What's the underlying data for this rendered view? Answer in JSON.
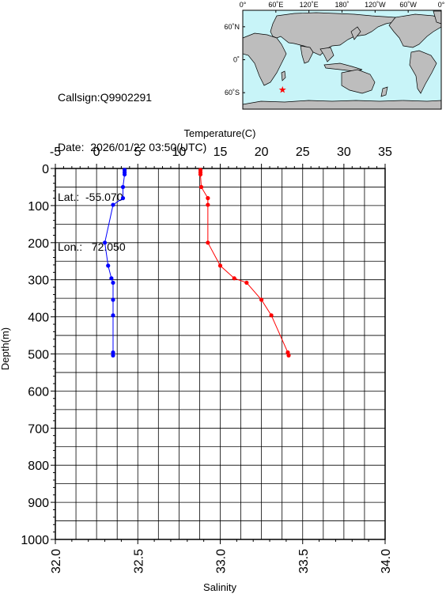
{
  "station": {
    "callsign": "Callsign:Q9902291",
    "date": "Date:  2026/01/22 03:50(UTC)",
    "lat": "Lat.:  -55.070",
    "lon": "Lon.:   72.050"
  },
  "map": {
    "lon_labels": [
      "0°",
      "60˚E",
      "120˚E",
      "180˚",
      "120˚W",
      "60˚W",
      "0°"
    ],
    "lat_labels": [
      "60˚N",
      "0˚",
      "60˚S"
    ],
    "marker": {
      "lon": 72.05,
      "lat": -55.07
    },
    "colors": {
      "ocean": "#c8f4f8",
      "land": "#bdbdbd",
      "marker": "#ff0000"
    }
  },
  "chart_data": {
    "type": "line",
    "temperature_axis_label": "Temperature(C)",
    "salinity_axis_label": "Salinity",
    "depth_axis_label": "Depth(m)",
    "temperature_ticks": [
      "-5",
      "0",
      "5",
      "10",
      "15",
      "20",
      "25",
      "30",
      "35"
    ],
    "salinity_ticks": [
      "32.0",
      "32.5",
      "33.0",
      "33.5",
      "34.0"
    ],
    "depth_ticks": [
      "0",
      "100",
      "200",
      "300",
      "400",
      "500",
      "600",
      "700",
      "800",
      "900",
      "1000"
    ],
    "temperature_range": [
      -5,
      35
    ],
    "salinity_range": [
      32.0,
      34.0
    ],
    "depth_range": [
      0,
      1000
    ],
    "grid": true,
    "series": [
      {
        "quantity": "temperature",
        "color": "#ff0000",
        "points": [
          {
            "depth": 4,
            "value": 12.6
          },
          {
            "depth": 10,
            "value": 12.6
          },
          {
            "depth": 16,
            "value": 12.6
          },
          {
            "depth": 50,
            "value": 12.7
          },
          {
            "depth": 80,
            "value": 13.5
          },
          {
            "depth": 98,
            "value": 13.5
          },
          {
            "depth": 200,
            "value": 13.5
          },
          {
            "depth": 262,
            "value": 15.0
          },
          {
            "depth": 296,
            "value": 16.7
          },
          {
            "depth": 308,
            "value": 18.2
          },
          {
            "depth": 354,
            "value": 20.0
          },
          {
            "depth": 396,
            "value": 21.2
          },
          {
            "depth": 496,
            "value": 23.2
          },
          {
            "depth": 504,
            "value": 23.3
          }
        ]
      },
      {
        "quantity": "salinity",
        "color": "#0000ff",
        "points": [
          {
            "depth": 4,
            "value": 32.42
          },
          {
            "depth": 10,
            "value": 32.42
          },
          {
            "depth": 16,
            "value": 32.42
          },
          {
            "depth": 50,
            "value": 32.41
          },
          {
            "depth": 80,
            "value": 32.41
          },
          {
            "depth": 98,
            "value": 32.35
          },
          {
            "depth": 200,
            "value": 32.3
          },
          {
            "depth": 262,
            "value": 32.32
          },
          {
            "depth": 296,
            "value": 32.34
          },
          {
            "depth": 308,
            "value": 32.35
          },
          {
            "depth": 354,
            "value": 32.35
          },
          {
            "depth": 396,
            "value": 32.35
          },
          {
            "depth": 496,
            "value": 32.35
          },
          {
            "depth": 504,
            "value": 32.35
          }
        ]
      }
    ]
  }
}
